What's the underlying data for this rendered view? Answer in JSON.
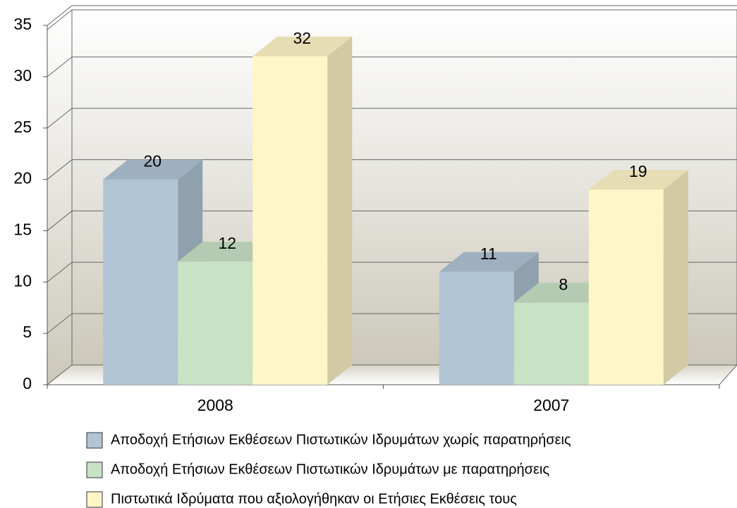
{
  "chart_data": {
    "type": "bar3d",
    "categories": [
      "2008",
      "2007"
    ],
    "series": [
      {
        "name": "Αποδοχή Ετήσιων Εκθέσεων Πιστωτικών Ιδρυμάτων χωρίς παρατηρήσεις",
        "color": "#b0c4d4",
        "values": [
          20,
          11
        ]
      },
      {
        "name": "Αποδοχή Ετήσιων Εκθέσεων Πιστωτικών Ιδρυμάτων με παρατηρήσεις",
        "color": "#c8e2c6",
        "values": [
          12,
          8
        ]
      },
      {
        "name": "Πιστωτικά Ιδρύματα που αξιολογήθηκαν οι Ετήσιες Εκθέσεις τους",
        "color": "#fff6c8",
        "values": [
          32,
          19
        ]
      }
    ],
    "ylim": [
      0,
      35
    ],
    "yticks": [
      0,
      5,
      10,
      15,
      20,
      25,
      30,
      35
    ],
    "grid": true
  }
}
